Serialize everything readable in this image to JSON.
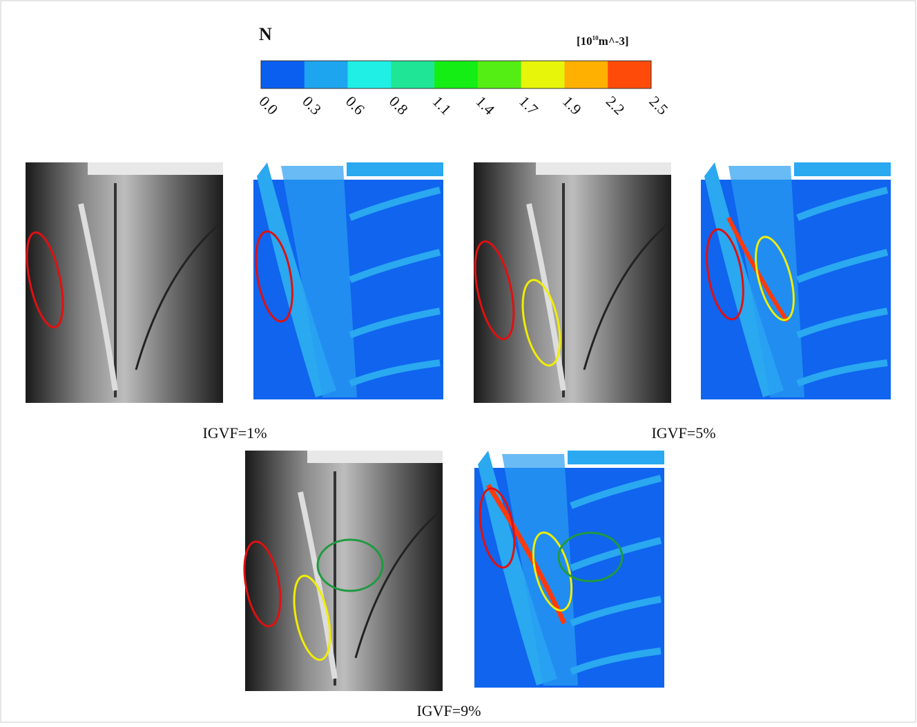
{
  "colorbar": {
    "title": "N",
    "unit": {
      "base": "[10",
      "exponent": "10",
      "rest": "m^-3]"
    },
    "colors": [
      "#0a5ef0",
      "#1ea5f0",
      "#20efe6",
      "#1ee696",
      "#14ee14",
      "#55ee14",
      "#e6f50a",
      "#ffb000",
      "#ff4b0a"
    ],
    "ticks": [
      "0.0",
      "0.3",
      "0.6",
      "0.8",
      "1.1",
      "1.4",
      "1.7",
      "1.9",
      "2.2",
      "2.5"
    ]
  },
  "panels": [
    {
      "label": "IGVF=1%"
    },
    {
      "label": "IGVF=5%"
    },
    {
      "label": "IGVF=9%"
    }
  ]
}
